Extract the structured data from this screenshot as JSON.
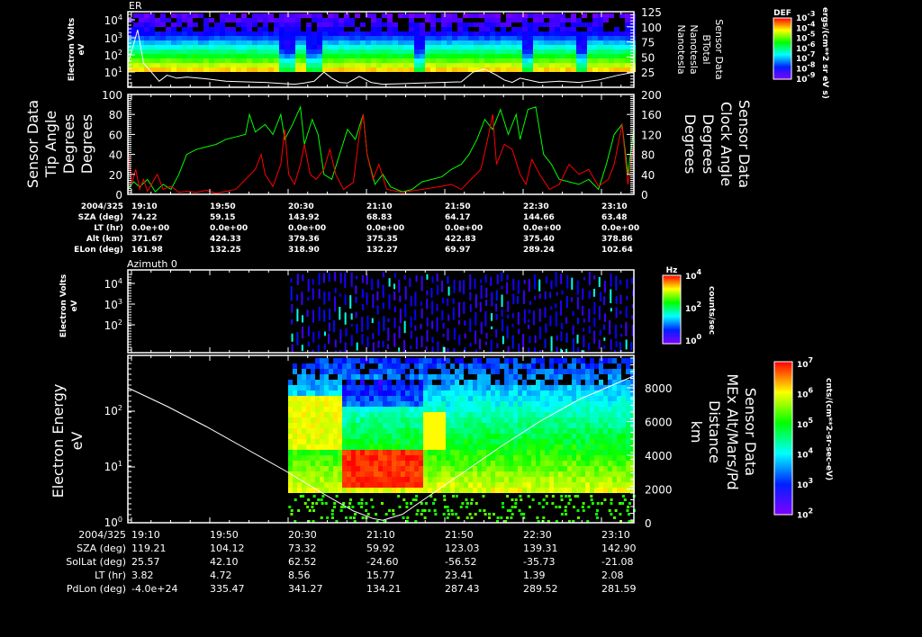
{
  "colors": {
    "tip_angle": "#ff0000",
    "clock_angle": "#00ff00",
    "btotal": "#ffffff",
    "altitude": "#ffffff",
    "axes": "#ffffff"
  },
  "chart_data": [
    {
      "type": "heatmap",
      "title": "ER",
      "ylabel": [
        "Electron Volts",
        "eV"
      ],
      "yscale": "log",
      "yticks": [
        {
          "b": "10",
          "e": "4"
        },
        {
          "b": "10",
          "e": "3"
        },
        {
          "b": "10",
          "e": "2"
        },
        {
          "b": "10",
          "e": "1"
        }
      ],
      "right_axis": {
        "label": [
          "Sensor Data",
          "BTotal",
          "Nanotesla",
          "Nanotesla"
        ],
        "ticks": [
          "125",
          "100",
          "75",
          "50",
          "25"
        ],
        "ylim": [
          0,
          125
        ]
      },
      "colorbar": {
        "title": "DEF",
        "ticks": [
          {
            "b": "10",
            "e": "-3"
          },
          {
            "b": "10",
            "e": "-4"
          },
          {
            "b": "10",
            "e": "-5"
          },
          {
            "b": "10",
            "e": "-6"
          },
          {
            "b": "10",
            "e": "-7"
          },
          {
            "b": "10",
            "e": "-8"
          },
          {
            "b": "10",
            "e": "-9"
          }
        ],
        "unit": "ergs/(cm**2 sr eV s)"
      },
      "series": [
        {
          "name": "BTotal",
          "x_minutes_after_1910": [
            0,
            2,
            5,
            8,
            12,
            16,
            20,
            25,
            30,
            40,
            50,
            60,
            70,
            80,
            85,
            90,
            95,
            100,
            104,
            108,
            112,
            118,
            124,
            130,
            140,
            150,
            160,
            170,
            176,
            182,
            188,
            192,
            196,
            200,
            210,
            220,
            230,
            240,
            250,
            258
          ],
          "values": [
            40,
            60,
            95,
            40,
            25,
            10,
            20,
            15,
            17,
            14,
            10,
            9,
            8,
            6,
            5,
            7,
            10,
            25,
            15,
            8,
            7,
            18,
            8,
            5,
            6,
            7,
            8,
            9,
            25,
            30,
            20,
            12,
            8,
            15,
            8,
            10,
            8,
            12,
            20,
            25
          ]
        }
      ]
    },
    {
      "type": "line",
      "left_axis": {
        "label": [
          "Sensor Data",
          "Tip Angle",
          "Degrees",
          "Degrees"
        ],
        "ticks": [
          "100",
          "80",
          "60",
          "40",
          "20",
          "0"
        ],
        "ylim": [
          0,
          100
        ]
      },
      "right_axis": {
        "label": [
          "Sensor Data",
          "Clock Angle",
          "Degrees",
          "Degrees"
        ],
        "ticks": [
          "200",
          "160",
          "120",
          "80",
          "40",
          "0"
        ],
        "ylim": [
          0,
          200
        ]
      },
      "series": [
        {
          "name": "Tip Angle",
          "axis": "left",
          "x_minutes_after_1910": [
            0,
            2,
            4,
            6,
            8,
            10,
            15,
            18,
            22,
            26,
            30,
            35,
            40,
            45,
            50,
            55,
            60,
            65,
            68,
            70,
            74,
            78,
            80,
            82,
            85,
            88,
            90,
            93,
            96,
            100,
            103,
            106,
            110,
            115,
            118,
            120,
            122,
            125,
            128,
            132,
            140,
            150,
            160,
            165,
            170,
            175,
            180,
            184,
            186,
            188,
            192,
            196,
            200,
            203,
            206,
            210,
            215,
            220,
            225,
            230,
            235,
            240,
            245,
            248,
            252,
            255,
            258
          ],
          "values": [
            45,
            10,
            25,
            5,
            15,
            3,
            20,
            5,
            8,
            2,
            3,
            2,
            4,
            1,
            3,
            5,
            15,
            25,
            40,
            20,
            8,
            30,
            65,
            20,
            10,
            30,
            50,
            20,
            15,
            25,
            45,
            20,
            5,
            12,
            60,
            80,
            40,
            15,
            30,
            5,
            2,
            5,
            8,
            10,
            5,
            15,
            25,
            60,
            80,
            30,
            50,
            45,
            20,
            10,
            35,
            20,
            5,
            10,
            30,
            20,
            25,
            8,
            15,
            30,
            70,
            10,
            50
          ]
        },
        {
          "name": "Clock Angle",
          "axis": "right",
          "x_minutes_after_1910": [
            0,
            3,
            6,
            10,
            14,
            18,
            22,
            26,
            30,
            35,
            40,
            45,
            50,
            55,
            60,
            62,
            65,
            70,
            74,
            78,
            80,
            84,
            88,
            90,
            94,
            97,
            100,
            104,
            108,
            112,
            116,
            120,
            122,
            126,
            130,
            134,
            140,
            145,
            150,
            155,
            160,
            165,
            170,
            174,
            178,
            182,
            186,
            190,
            194,
            198,
            200,
            204,
            208,
            212,
            216,
            220,
            225,
            230,
            235,
            240,
            244,
            248,
            252,
            255,
            258
          ],
          "values": [
            10,
            25,
            15,
            30,
            5,
            20,
            10,
            40,
            80,
            90,
            95,
            100,
            110,
            115,
            120,
            160,
            125,
            140,
            120,
            160,
            110,
            140,
            175,
            100,
            150,
            120,
            40,
            30,
            80,
            130,
            110,
            160,
            80,
            20,
            40,
            15,
            5,
            10,
            25,
            30,
            35,
            50,
            60,
            80,
            110,
            150,
            130,
            170,
            120,
            160,
            110,
            170,
            175,
            80,
            60,
            30,
            25,
            20,
            30,
            10,
            60,
            120,
            140,
            40,
            130
          ]
        }
      ]
    },
    {
      "type": "heatmap",
      "title": "Azimuth 0",
      "ylabel": [
        "Electron Volts",
        "eV"
      ],
      "yscale": "log",
      "yticks": [
        {
          "b": "10",
          "e": "4"
        },
        {
          "b": "10",
          "e": "3"
        },
        {
          "b": "10",
          "e": "2"
        }
      ],
      "colorbar": {
        "title": "Hz",
        "ticks": [
          {
            "b": "10",
            "e": "4"
          },
          {
            "b": "10",
            "e": "2"
          },
          {
            "b": "10",
            "e": "0"
          }
        ],
        "unit": "counts/sec"
      }
    },
    {
      "type": "heatmap",
      "ylabel": [
        "Electron Energy",
        "eV"
      ],
      "yscale": "log",
      "yticks": [
        {
          "b": "10",
          "e": "2"
        },
        {
          "b": "10",
          "e": "1"
        },
        {
          "b": "10",
          "e": "0"
        }
      ],
      "right_axis": {
        "label": [
          "Sensor Data",
          "MEx Alt/Mars/Pd",
          "Distance",
          "km"
        ],
        "ticks": [
          "8000",
          "6000",
          "4000",
          "2000",
          "0"
        ],
        "ylim": [
          0,
          9200
        ]
      },
      "colorbar": {
        "ticks": [
          {
            "b": "10",
            "e": "7"
          },
          {
            "b": "10",
            "e": "6"
          },
          {
            "b": "10",
            "e": "5"
          },
          {
            "b": "10",
            "e": "4"
          },
          {
            "b": "10",
            "e": "3"
          },
          {
            "b": "10",
            "e": "2"
          }
        ],
        "unit": "cnts/(cm**2-sr-sec-eV)"
      },
      "series": [
        {
          "name": "MEx Alt",
          "x_minutes_after_1910": [
            0,
            20,
            40,
            60,
            80,
            100,
            115,
            125,
            130,
            140,
            150,
            170,
            190,
            210,
            230,
            258
          ],
          "values": [
            8000,
            6900,
            5700,
            4400,
            3100,
            1700,
            700,
            250,
            150,
            500,
            1300,
            2900,
            4500,
            6000,
            7300,
            8700
          ]
        }
      ]
    }
  ],
  "ephemeris_top": {
    "rows": [
      {
        "label": "2004/325",
        "values": [
          "19:10",
          "19:50",
          "20:30",
          "21:10",
          "21:50",
          "22:30",
          "23:10"
        ]
      },
      {
        "label": "SZA (deg)",
        "values": [
          "74.22",
          "59.15",
          "143.92",
          "68.83",
          "64.17",
          "144.66",
          "63.48"
        ]
      },
      {
        "label": "LT (hr)",
        "values": [
          "0.0e+00",
          "0.0e+00",
          "0.0e+00",
          "0.0e+00",
          "0.0e+00",
          "0.0e+00",
          "0.0e+00"
        ]
      },
      {
        "label": "Alt (km)",
        "values": [
          "371.67",
          "424.33",
          "379.36",
          "375.35",
          "422.83",
          "375.40",
          "378.86"
        ]
      },
      {
        "label": "ELon (deg)",
        "values": [
          "161.98",
          "132.25",
          "318.90",
          "132.27",
          "69.97",
          "289.24",
          "102.64"
        ]
      }
    ]
  },
  "ephemeris_bottom": {
    "rows": [
      {
        "label": "2004/325",
        "values": [
          "19:10",
          "19:50",
          "20:30",
          "21:10",
          "21:50",
          "22:30",
          "23:10"
        ]
      },
      {
        "label": "SZA (deg)",
        "values": [
          "119.21",
          "104.12",
          "73.32",
          "59.92",
          "123.03",
          "139.31",
          "142.90"
        ]
      },
      {
        "label": "SolLat (deg)",
        "values": [
          "25.57",
          "42.10",
          "62.52",
          "-24.60",
          "-56.52",
          "-35.73",
          "-21.08"
        ]
      },
      {
        "label": "LT (hr)",
        "values": [
          "3.82",
          "4.72",
          "8.56",
          "15.77",
          "23.41",
          "1.39",
          "2.08"
        ]
      },
      {
        "label": "PdLon (deg)",
        "values": [
          "-4.0e+24",
          "335.47",
          "341.27",
          "134.21",
          "287.43",
          "289.52",
          "281.59"
        ]
      }
    ]
  }
}
